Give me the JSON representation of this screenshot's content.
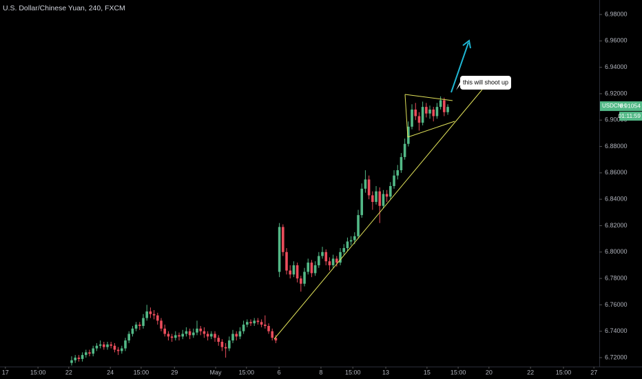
{
  "chart_data": {
    "type": "candlestick",
    "title": "U.S. Dollar/Chinese Yuan, 240, FXCM",
    "annotation": "this will shoot up",
    "symbol": "USDCNH",
    "last_price": 6.91054,
    "countdown": "01:11:59",
    "up_color": "#53b987",
    "down_color": "#eb4d5c",
    "ylim": [
      6.7132,
      6.991
    ],
    "yticks": [
      {
        "value": 6.72,
        "label": "6.72000"
      },
      {
        "value": 6.74,
        "label": "6.74000"
      },
      {
        "value": 6.76,
        "label": "6.76000"
      },
      {
        "value": 6.78,
        "label": "6.78000"
      },
      {
        "value": 6.8,
        "label": "6.80000"
      },
      {
        "value": 6.82,
        "label": "6.82000"
      },
      {
        "value": 6.84,
        "label": "6.84000"
      },
      {
        "value": 6.86,
        "label": "6.86000"
      },
      {
        "value": 6.88,
        "label": "6.88000"
      },
      {
        "value": 6.9,
        "label": "6.90000"
      },
      {
        "value": 6.92,
        "label": "6.92000"
      },
      {
        "value": 6.94,
        "label": "6.94000"
      },
      {
        "value": 6.96,
        "label": "6.96000"
      },
      {
        "value": 6.98,
        "label": "6.98000"
      }
    ],
    "xlim": [
      0,
      167.3
    ],
    "xticks": [
      {
        "value": 1.5,
        "label": "17"
      },
      {
        "value": 10.6,
        "label": "15:00"
      },
      {
        "value": 19.2,
        "label": "22"
      },
      {
        "value": 30.8,
        "label": "24"
      },
      {
        "value": 39.4,
        "label": "15:00"
      },
      {
        "value": 48.7,
        "label": "29"
      },
      {
        "value": 60.2,
        "label": "May"
      },
      {
        "value": 68.8,
        "label": "15:00"
      },
      {
        "value": 77.9,
        "label": "6"
      },
      {
        "value": 89.6,
        "label": "8"
      },
      {
        "value": 98.5,
        "label": "15:00"
      },
      {
        "value": 107.7,
        "label": "13"
      },
      {
        "value": 119.2,
        "label": "15"
      },
      {
        "value": 127.9,
        "label": "15:00"
      },
      {
        "value": 136.5,
        "label": "20"
      },
      {
        "value": 148.1,
        "label": "22"
      },
      {
        "value": 157.3,
        "label": "15:00"
      },
      {
        "value": 165.8,
        "label": "27"
      }
    ],
    "x": [
      20,
      21,
      22,
      23,
      24,
      25,
      26,
      27,
      28,
      29,
      30,
      31,
      32,
      33,
      34,
      35,
      36,
      37,
      38,
      39,
      40,
      41,
      42,
      43,
      44,
      45,
      46,
      47,
      48,
      49,
      50,
      51,
      52,
      53,
      54,
      55,
      56,
      57,
      58,
      59,
      60,
      61,
      62,
      63,
      64,
      65,
      66,
      67,
      68,
      69,
      70,
      71,
      72,
      73,
      74,
      75,
      76,
      77,
      78,
      79,
      80,
      81,
      82,
      83,
      84,
      85,
      86,
      87,
      88,
      89,
      90,
      91,
      92,
      93,
      94,
      95,
      96,
      97,
      98,
      99,
      100,
      101,
      102,
      103,
      104,
      105,
      106,
      107,
      108,
      109,
      110,
      111,
      112,
      113,
      114,
      115,
      116,
      117,
      118,
      119,
      120,
      121,
      122,
      123,
      124,
      125
    ],
    "ohlc": [
      [
        6.716,
        6.721,
        6.714,
        6.718
      ],
      [
        6.718,
        6.722,
        6.716,
        6.72
      ],
      [
        6.72,
        6.722,
        6.717,
        6.719
      ],
      [
        6.719,
        6.724,
        6.717,
        6.722
      ],
      [
        6.722,
        6.726,
        6.72,
        6.724
      ],
      [
        6.724,
        6.726,
        6.721,
        6.723
      ],
      [
        6.723,
        6.729,
        6.721,
        6.727
      ],
      [
        6.727,
        6.731,
        6.725,
        6.729
      ],
      [
        6.729,
        6.733,
        6.727,
        6.73
      ],
      [
        6.73,
        6.732,
        6.726,
        6.728
      ],
      [
        6.728,
        6.732,
        6.726,
        6.73
      ],
      [
        6.73,
        6.732,
        6.727,
        6.729
      ],
      [
        6.729,
        6.731,
        6.724,
        6.726
      ],
      [
        6.726,
        6.728,
        6.722,
        6.725
      ],
      [
        6.725,
        6.729,
        6.723,
        6.727
      ],
      [
        6.727,
        6.735,
        6.725,
        6.733
      ],
      [
        6.733,
        6.74,
        6.731,
        6.738
      ],
      [
        6.738,
        6.744,
        6.736,
        6.742
      ],
      [
        6.742,
        6.747,
        6.74,
        6.745
      ],
      [
        6.745,
        6.747,
        6.741,
        6.744
      ],
      [
        6.744,
        6.753,
        6.742,
        6.75
      ],
      [
        6.75,
        6.76,
        6.748,
        6.755
      ],
      [
        6.755,
        6.758,
        6.75,
        6.753
      ],
      [
        6.753,
        6.756,
        6.749,
        6.752
      ],
      [
        6.752,
        6.754,
        6.745,
        6.748
      ],
      [
        6.748,
        6.75,
        6.74,
        6.742
      ],
      [
        6.742,
        6.745,
        6.736,
        6.738
      ],
      [
        6.738,
        6.74,
        6.733,
        6.736
      ],
      [
        6.736,
        6.738,
        6.732,
        6.735
      ],
      [
        6.735,
        6.74,
        6.733,
        6.737
      ],
      [
        6.737,
        6.739,
        6.733,
        6.736
      ],
      [
        6.736,
        6.741,
        6.734,
        6.738
      ],
      [
        6.738,
        6.743,
        6.736,
        6.74
      ],
      [
        6.74,
        6.742,
        6.734,
        6.737
      ],
      [
        6.737,
        6.742,
        6.735,
        6.739
      ],
      [
        6.739,
        6.748,
        6.737,
        6.742
      ],
      [
        6.742,
        6.744,
        6.737,
        6.74
      ],
      [
        6.74,
        6.743,
        6.735,
        6.738
      ],
      [
        6.738,
        6.74,
        6.733,
        6.736
      ],
      [
        6.736,
        6.74,
        6.734,
        6.738
      ],
      [
        6.738,
        6.74,
        6.732,
        6.735
      ],
      [
        6.735,
        6.737,
        6.729,
        6.732
      ],
      [
        6.732,
        6.734,
        6.725,
        6.728
      ],
      [
        6.728,
        6.731,
        6.72,
        6.727
      ],
      [
        6.727,
        6.736,
        6.725,
        6.733
      ],
      [
        6.733,
        6.741,
        6.731,
        6.738
      ],
      [
        6.738,
        6.74,
        6.733,
        6.736
      ],
      [
        6.736,
        6.743,
        6.734,
        6.74
      ],
      [
        6.74,
        6.748,
        6.738,
        6.745
      ],
      [
        6.745,
        6.749,
        6.743,
        6.747
      ],
      [
        6.747,
        6.749,
        6.744,
        6.746
      ],
      [
        6.746,
        6.75,
        6.744,
        6.748
      ],
      [
        6.748,
        6.75,
        6.745,
        6.747
      ],
      [
        6.747,
        6.749,
        6.743,
        6.745
      ],
      [
        6.745,
        6.752,
        6.742,
        6.744
      ],
      [
        6.744,
        6.746,
        6.738,
        6.74
      ],
      [
        6.74,
        6.742,
        6.733,
        6.735
      ],
      [
        6.735,
        6.737,
        6.731,
        6.733
      ],
      [
        6.785,
        6.822,
        6.781,
        6.819
      ],
      [
        6.819,
        6.821,
        6.797,
        6.8
      ],
      [
        6.8,
        6.803,
        6.783,
        6.786
      ],
      [
        6.786,
        6.79,
        6.78,
        6.783
      ],
      [
        6.783,
        6.793,
        6.781,
        6.79
      ],
      [
        6.79,
        6.792,
        6.777,
        6.78
      ],
      [
        6.78,
        6.782,
        6.77,
        6.776
      ],
      [
        6.776,
        6.788,
        6.774,
        6.785
      ],
      [
        6.785,
        6.795,
        6.783,
        6.792
      ],
      [
        6.792,
        6.794,
        6.781,
        6.784
      ],
      [
        6.784,
        6.793,
        6.782,
        6.79
      ],
      [
        6.79,
        6.8,
        6.788,
        6.797
      ],
      [
        6.797,
        6.804,
        6.795,
        6.8
      ],
      [
        6.8,
        6.802,
        6.79,
        6.793
      ],
      [
        6.793,
        6.796,
        6.786,
        6.79
      ],
      [
        6.79,
        6.798,
        6.788,
        6.795
      ],
      [
        6.795,
        6.797,
        6.789,
        6.792
      ],
      [
        6.792,
        6.803,
        6.79,
        6.8
      ],
      [
        6.8,
        6.806,
        6.798,
        6.803
      ],
      [
        6.803,
        6.811,
        6.801,
        6.808
      ],
      [
        6.808,
        6.812,
        6.805,
        6.809
      ],
      [
        6.809,
        6.815,
        6.806,
        6.812
      ],
      [
        6.812,
        6.832,
        6.81,
        6.828
      ],
      [
        6.828,
        6.852,
        6.826,
        6.848
      ],
      [
        6.848,
        6.862,
        6.845,
        6.855
      ],
      [
        6.855,
        6.858,
        6.84,
        6.843
      ],
      [
        6.843,
        6.846,
        6.832,
        6.838
      ],
      [
        6.838,
        6.85,
        6.836,
        6.846
      ],
      [
        6.846,
        6.849,
        6.822,
        6.835
      ],
      [
        6.835,
        6.847,
        6.833,
        6.844
      ],
      [
        6.844,
        6.847,
        6.838,
        6.842
      ],
      [
        6.842,
        6.853,
        6.84,
        6.85
      ],
      [
        6.85,
        6.862,
        6.848,
        6.858
      ],
      [
        6.858,
        6.866,
        6.855,
        6.862
      ],
      [
        6.862,
        6.875,
        6.86,
        6.872
      ],
      [
        6.872,
        6.886,
        6.87,
        6.882
      ],
      [
        6.882,
        6.899,
        6.88,
        6.895
      ],
      [
        6.895,
        6.912,
        6.893,
        6.908
      ],
      [
        6.908,
        6.913,
        6.9,
        6.903
      ],
      [
        6.903,
        6.906,
        6.892,
        6.898
      ],
      [
        6.898,
        6.914,
        6.896,
        6.91
      ],
      [
        6.91,
        6.913,
        6.902,
        6.905
      ],
      [
        6.905,
        6.911,
        6.901,
        6.908
      ],
      [
        6.908,
        6.91,
        6.899,
        6.903
      ],
      [
        6.903,
        6.913,
        6.901,
        6.91
      ],
      [
        6.91,
        6.918,
        6.908,
        6.915
      ],
      [
        6.915,
        6.917,
        6.903,
        6.906
      ],
      [
        6.906,
        6.912,
        6.904,
        6.91
      ]
    ]
  }
}
